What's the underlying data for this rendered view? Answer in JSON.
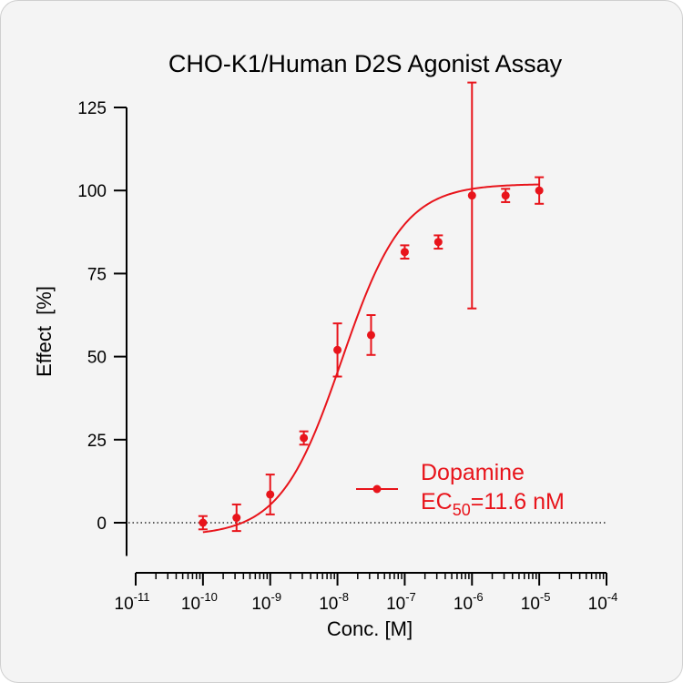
{
  "colors": {
    "series": "#e8141b",
    "axis": "#000000",
    "card_bg": "#f4f4f4"
  },
  "chart_data": {
    "type": "scatter",
    "title": "CHO-K1/Human D2S Agonist Assay",
    "xlabel": "Conc. [M]",
    "ylabel": "Effect  [%]",
    "x_scale": "log",
    "xlim": [
      1e-11,
      0.0001
    ],
    "ylim": [
      -10,
      125
    ],
    "y_ticks": [
      0,
      25,
      50,
      75,
      100,
      125
    ],
    "y_tick_labels": [
      "0",
      "25",
      "50",
      "75",
      "100",
      "125"
    ],
    "x_tick_labels": [
      {
        "base": "10",
        "exp": "-11"
      },
      {
        "base": "10",
        "exp": "-10"
      },
      {
        "base": "10",
        "exp": "-9"
      },
      {
        "base": "10",
        "exp": "-8"
      },
      {
        "base": "10",
        "exp": "-7"
      },
      {
        "base": "10",
        "exp": "-6"
      },
      {
        "base": "10",
        "exp": "-5"
      },
      {
        "base": "10",
        "exp": "-4"
      }
    ],
    "reference_line": {
      "y": 0,
      "style": "dotted"
    },
    "series": [
      {
        "name": "Dopamine",
        "x": [
          1e-10,
          3.16e-10,
          1e-09,
          3.16e-09,
          1e-08,
          3.16e-08,
          1e-07,
          3.16e-07,
          1e-06,
          3.16e-06,
          1e-05
        ],
        "y": [
          0,
          1.5,
          8.5,
          25.5,
          52,
          56.5,
          81.5,
          84.5,
          98.5,
          98.5,
          100
        ],
        "error": [
          2,
          4,
          6,
          2,
          8,
          6,
          2,
          2,
          34,
          2,
          4
        ],
        "fit": {
          "model": "4PL",
          "bottom": -4,
          "top": 102,
          "ec50": 1.16e-08,
          "hill": 0.95,
          "x_range": [
            1e-10,
            1e-05
          ]
        }
      }
    ],
    "legend": {
      "position": "lower-right",
      "label": "Dopamine",
      "ec50_prefix": "EC",
      "ec50_sub": "50",
      "ec50_value": "=11.6 nM"
    }
  }
}
